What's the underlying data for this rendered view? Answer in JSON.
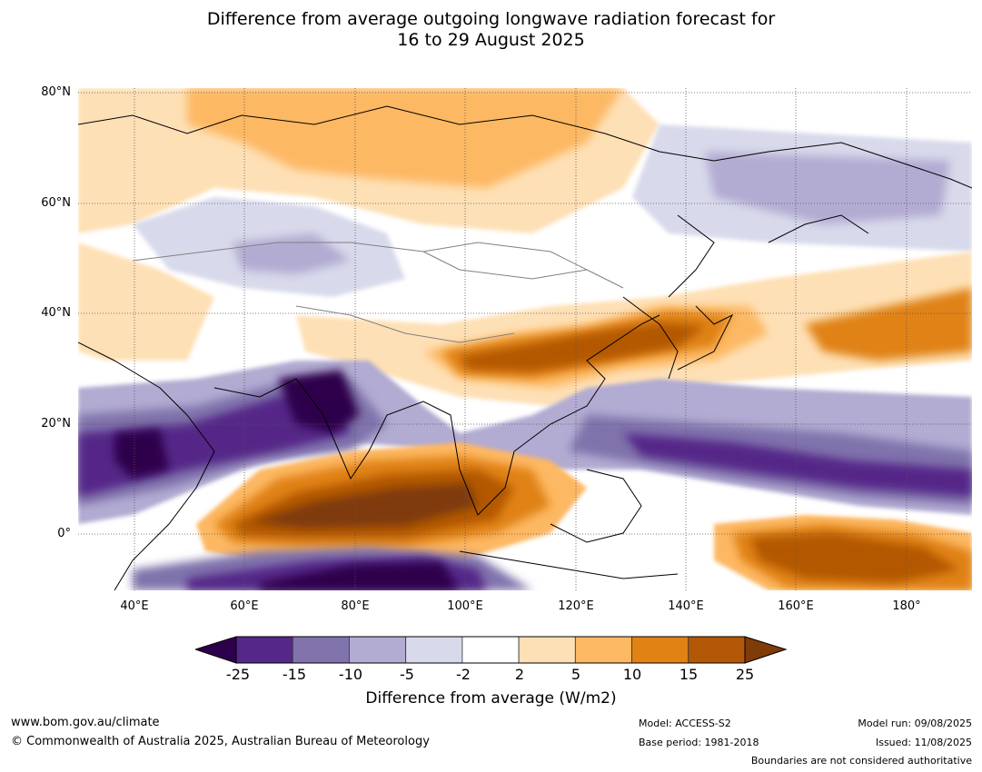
{
  "title": {
    "line1": "Difference from average outgoing longwave radiation forecast for",
    "line2": "16 to 29 August 2025"
  },
  "map": {
    "lat_labels": [
      "80°N",
      "60°N",
      "40°N",
      "20°N",
      "0°"
    ],
    "lon_labels": [
      "40°E",
      "60°E",
      "80°E",
      "100°E",
      "120°E",
      "140°E",
      "160°E",
      "180°"
    ],
    "extent": {
      "lon": [
        30,
        192
      ],
      "lat": [
        -10,
        81
      ]
    }
  },
  "colorbar": {
    "ticks": [
      "-25",
      "-15",
      "-10",
      "-5",
      "-2",
      "2",
      "5",
      "10",
      "15",
      "25"
    ],
    "colors": {
      "under": "#2d004b",
      "bins": [
        "#542788",
        "#8073ac",
        "#b2abd2",
        "#d8daeb",
        "#ffffff",
        "#fee0b6",
        "#fdb863",
        "#e08214",
        "#b35806"
      ],
      "over": "#7f3b08"
    },
    "label": "Difference from average (W/m2)"
  },
  "footer": {
    "website": "www.bom.gov.au/climate",
    "copyright": "© Commonwealth of Australia 2025, Australian Bureau of Meteorology",
    "model": "Model: ACCESS-S2",
    "base_period": "Base period: 1981-2018",
    "model_run": "Model run: 09/08/2025",
    "issued": "Issued: 11/08/2025",
    "boundaries_note": "Boundaries are not considered authoritative"
  }
}
